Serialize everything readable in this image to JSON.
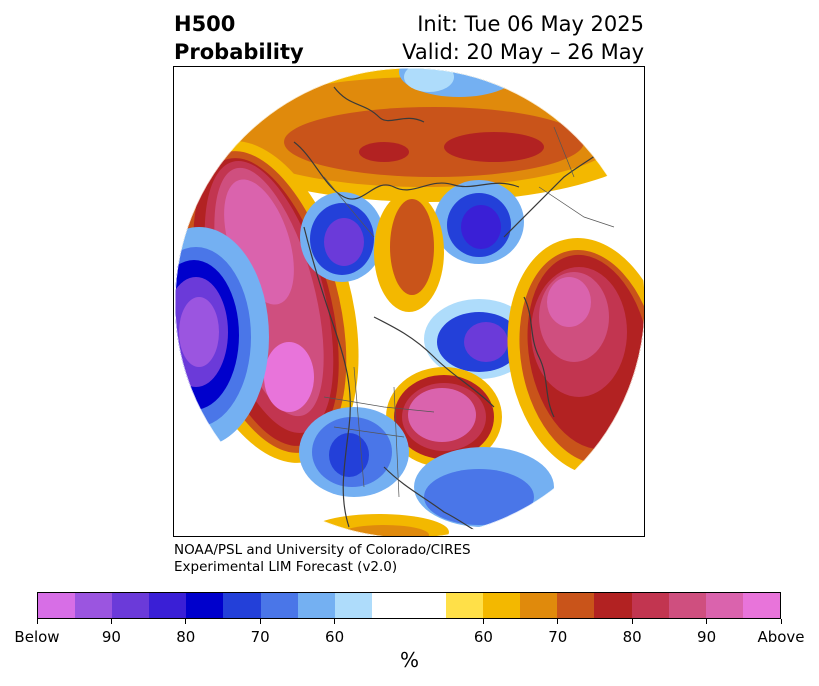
{
  "header": {
    "title_line1": "H500",
    "title_line2": "Probability",
    "init_text": "Init: Tue 06 May 2025",
    "valid_text": "Valid: 20 May – 26 May"
  },
  "credits": {
    "line1": "NOAA/PSL and University of Colorado/CIRES",
    "line2": "Experimental LIM Forecast (v2.0)"
  },
  "colorbar": {
    "colors": [
      "#d76ee6",
      "#9b55e0",
      "#6b3ad9",
      "#3a1fd6",
      "#0000cc",
      "#2340d9",
      "#4a76e8",
      "#74b0f2",
      "#aedcfb",
      "#ffffff",
      "#ffffff",
      "#ffe048",
      "#f3b800",
      "#e08a0c",
      "#c9541a",
      "#b22222",
      "#c23550",
      "#cf4f7f",
      "#da63ad",
      "#e874da"
    ],
    "tick_labels": [
      "Below",
      "90",
      "80",
      "70",
      "60",
      "60",
      "70",
      "80",
      "90",
      "Above"
    ],
    "unit_label": "%"
  },
  "map": {
    "projection": "north-polar-stereographic",
    "features": [
      "coastlines",
      "country-borders",
      "state-borders"
    ]
  }
}
